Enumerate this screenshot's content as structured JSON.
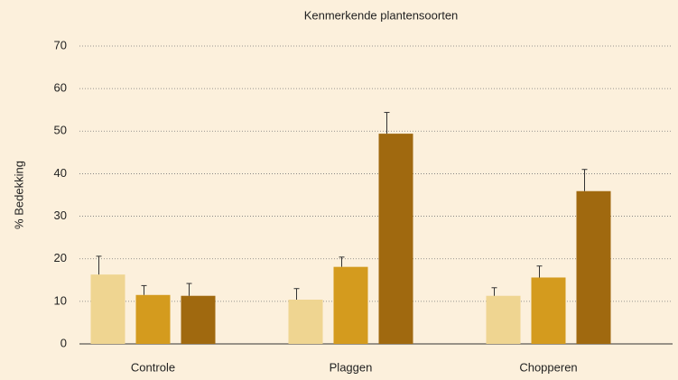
{
  "chart_data": {
    "type": "bar",
    "title": "Kenmerkende plantensoorten",
    "ylabel": "% Bedekking",
    "categories": [
      "Controle",
      "Plaggen",
      "Chopperen"
    ],
    "series": [
      {
        "color": "#efd591",
        "values": [
          16.3,
          10.4,
          11.3
        ],
        "errors": [
          4.3,
          2.6,
          1.9
        ]
      },
      {
        "color": "#d49b1e",
        "values": [
          11.5,
          18.1,
          15.6
        ],
        "errors": [
          2.2,
          2.3,
          2.7
        ]
      },
      {
        "color": "#a0690f",
        "values": [
          11.3,
          49.4,
          35.9
        ],
        "errors": [
          2.9,
          5.0,
          5.1
        ]
      }
    ],
    "ylim": [
      0,
      70
    ],
    "yticks": [
      0,
      10,
      20,
      30,
      40,
      50,
      60,
      70
    ],
    "grid": true
  }
}
